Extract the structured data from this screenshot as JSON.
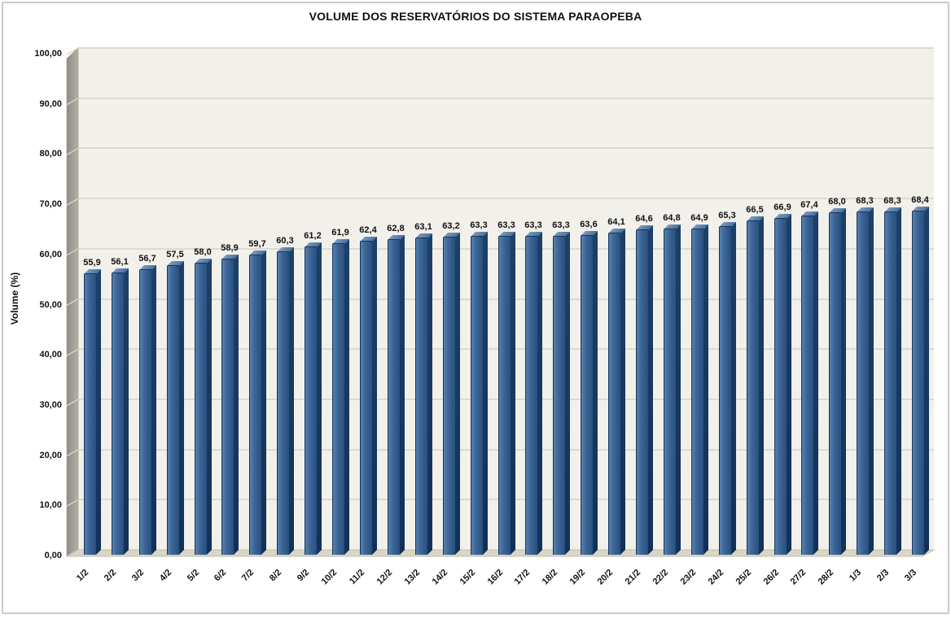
{
  "chart_data": {
    "type": "bar",
    "style": "3d-column",
    "title": "VOLUME DOS RESERVATÓRIOS DO SISTEMA PARAOPEBA",
    "xlabel": "",
    "ylabel": "Volume (%)",
    "ylim": [
      0,
      100
    ],
    "ytick_step": 10,
    "ytick_labels": [
      "0,00",
      "10,00",
      "20,00",
      "30,00",
      "40,00",
      "50,00",
      "60,00",
      "70,00",
      "80,00",
      "90,00",
      "100,00"
    ],
    "grid": true,
    "legend": "none",
    "categories": [
      "1/2",
      "2/2",
      "3/2",
      "4/2",
      "5/2",
      "6/2",
      "7/2",
      "8/2",
      "9/2",
      "10/2",
      "11/2",
      "12/2",
      "13/2",
      "14/2",
      "15/2",
      "16/2",
      "17/2",
      "18/2",
      "19/2",
      "20/2",
      "21/2",
      "22/2",
      "23/2",
      "24/2",
      "25/2",
      "26/2",
      "27/2",
      "28/2",
      "1/3",
      "2/3",
      "3/3"
    ],
    "values": [
      55.9,
      56.1,
      56.7,
      57.5,
      58.0,
      58.9,
      59.7,
      60.3,
      61.2,
      61.9,
      62.4,
      62.8,
      63.1,
      63.2,
      63.3,
      63.3,
      63.3,
      63.3,
      63.6,
      64.1,
      64.6,
      64.8,
      64.9,
      65.3,
      66.5,
      66.9,
      67.4,
      68.0,
      68.3,
      68.3,
      68.4
    ],
    "value_labels": [
      "55,9",
      "56,1",
      "56,7",
      "57,5",
      "58,0",
      "58,9",
      "59,7",
      "60,3",
      "61,2",
      "61,9",
      "62,4",
      "62,8",
      "63,1",
      "63,2",
      "63,3",
      "63,3",
      "63,3",
      "63,3",
      "63,6",
      "64,1",
      "64,6",
      "64,8",
      "64,9",
      "65,3",
      "66,5",
      "66,9",
      "67,4",
      "68,0",
      "68,3",
      "68,3",
      "68,4"
    ],
    "colors": {
      "bar_face": "#3d6597",
      "bar_face_highlight": "#5681ad",
      "bar_face_shade": "#27507e",
      "bar_side": "#1d4068",
      "bar_top": "#49719e",
      "bar_top_highlight": "#7b9abc",
      "bar_outline": "#16355c",
      "plot_background": "#f2f0ea",
      "gridline": "#dcdad2",
      "wall_dark": "#8f8d83",
      "wall_light": "#b3b1a7",
      "floor": "#d9d6c4",
      "floor_edge": "#c2bfae",
      "text": "#111111",
      "chart_background": "#ffffff"
    }
  }
}
